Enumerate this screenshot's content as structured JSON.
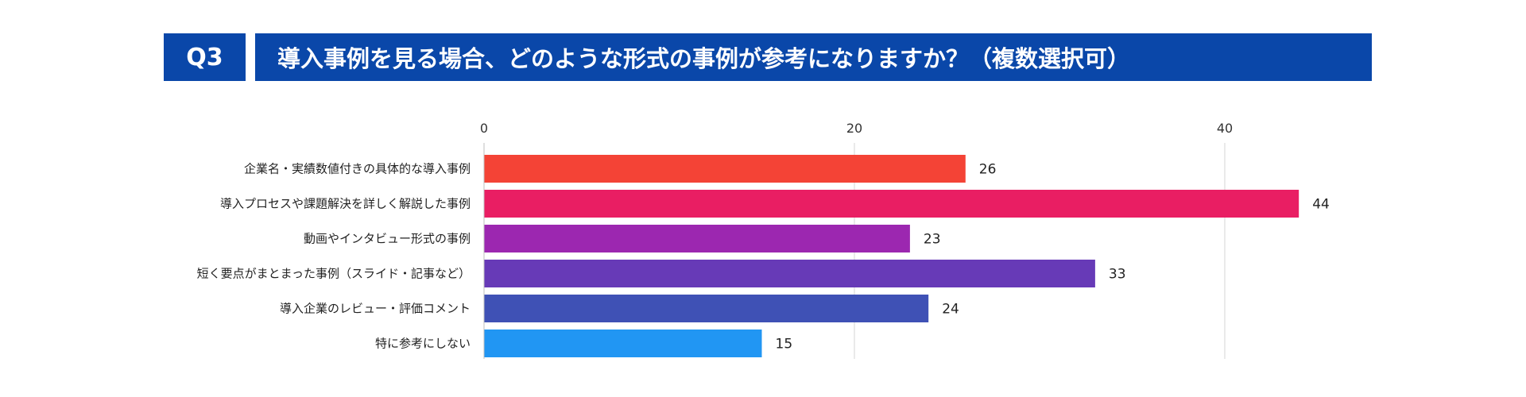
{
  "header": {
    "question_number": "Q3",
    "question_text": "導入事例を見る場合、どのような形式の事例が参考になりますか？（複数選択可）"
  },
  "chart_data": {
    "type": "bar",
    "orientation": "horizontal",
    "title": "",
    "xlabel": "",
    "ylabel": "",
    "xlim": [
      0,
      46
    ],
    "xticks": [
      0,
      20,
      40
    ],
    "grid": true,
    "legend": false,
    "categories": [
      "企業名・実績数値付きの具体的な導入事例",
      "導入プロセスや課題解決を詳しく解説した事例",
      "動画やインタビュー形式の事例",
      "短く要点がまとまった事例（スライド・記事など）",
      "導入企業のレビュー・評価コメント",
      "特に参考にしない"
    ],
    "values": [
      26,
      44,
      23,
      33,
      24,
      15
    ],
    "colors": [
      "#f44336",
      "#e91e63",
      "#9c27b0",
      "#673ab7",
      "#3f51b5",
      "#2196f3"
    ]
  }
}
